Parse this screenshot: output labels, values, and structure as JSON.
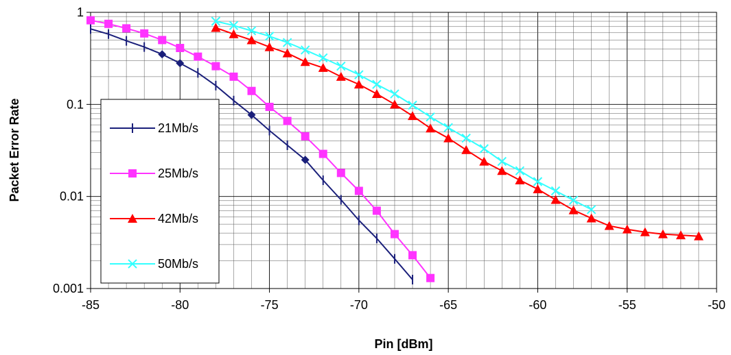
{
  "chart_data": {
    "type": "line",
    "title": "",
    "xlabel": "Pin [dBm]",
    "ylabel": "Packet Error Rate",
    "xlim": [
      -85,
      -50
    ],
    "ylim": [
      0.001,
      1
    ],
    "yscale": "log",
    "grid": true,
    "legend_position": "left",
    "x_ticks": [
      "-85",
      "-80",
      "-75",
      "-70",
      "-65",
      "-60",
      "-55",
      "-50"
    ],
    "y_ticks": [
      "0.001",
      "0.01",
      "0.1",
      "1"
    ],
    "series": [
      {
        "name": "21Mb/s",
        "color": "#1a1f7a",
        "marker": "plus",
        "x": [
          -85,
          -84,
          -83,
          -82,
          -81,
          -80,
          -79,
          -78,
          -77,
          -76,
          -75,
          -74,
          -73,
          -72,
          -71,
          -70,
          -69,
          -68,
          -67
        ],
        "y": [
          0.66,
          0.58,
          0.49,
          0.42,
          0.35,
          0.28,
          0.22,
          0.16,
          0.11,
          0.077,
          0.052,
          0.036,
          0.025,
          0.015,
          0.0092,
          0.0055,
          0.0035,
          0.0021,
          0.00125
        ]
      },
      {
        "name": "25Mb/s",
        "color": "#ff33ff",
        "marker": "square",
        "x": [
          -85,
          -84,
          -83,
          -82,
          -81,
          -80,
          -79,
          -78,
          -77,
          -76,
          -75,
          -74,
          -73,
          -72,
          -71,
          -70,
          -69,
          -68,
          -67,
          -66
        ],
        "y": [
          0.82,
          0.75,
          0.67,
          0.59,
          0.5,
          0.41,
          0.33,
          0.26,
          0.2,
          0.14,
          0.094,
          0.066,
          0.045,
          0.029,
          0.018,
          0.0115,
          0.007,
          0.0039,
          0.0023,
          0.0013
        ]
      },
      {
        "name": "42Mb/s",
        "color": "#ff0000",
        "marker": "triangle",
        "x": [
          -78,
          -77,
          -76,
          -75,
          -74,
          -73,
          -72,
          -71,
          -70,
          -69,
          -68,
          -67,
          -66,
          -65,
          -64,
          -63,
          -62,
          -61,
          -60,
          -59,
          -58,
          -57,
          -56,
          -55,
          -54,
          -53,
          -52,
          -51
        ],
        "y": [
          0.68,
          0.58,
          0.5,
          0.42,
          0.36,
          0.29,
          0.25,
          0.2,
          0.165,
          0.13,
          0.1,
          0.075,
          0.055,
          0.043,
          0.032,
          0.024,
          0.019,
          0.015,
          0.012,
          0.0092,
          0.0071,
          0.0058,
          0.0048,
          0.0044,
          0.0041,
          0.0039,
          0.0038,
          0.0037
        ]
      },
      {
        "name": "50Mb/s",
        "color": "#33ffff",
        "marker": "x",
        "x": [
          -78,
          -77,
          -76,
          -75,
          -74,
          -73,
          -72,
          -71,
          -70,
          -69,
          -68,
          -67,
          -66,
          -65,
          -64,
          -63,
          -62,
          -61,
          -60,
          -59,
          -58,
          -57
        ],
        "y": [
          0.8,
          0.72,
          0.63,
          0.55,
          0.47,
          0.39,
          0.32,
          0.26,
          0.21,
          0.165,
          0.13,
          0.098,
          0.073,
          0.056,
          0.043,
          0.033,
          0.024,
          0.019,
          0.0145,
          0.0115,
          0.0091,
          0.0072
        ]
      }
    ]
  }
}
